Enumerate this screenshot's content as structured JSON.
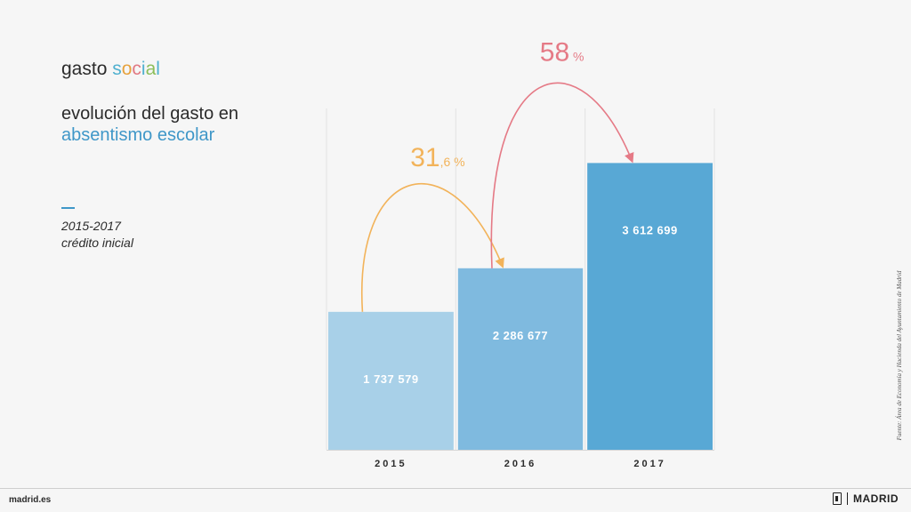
{
  "header": {
    "title_part1": "gasto ",
    "title_part2_letters": [
      "s",
      "o",
      "c",
      "i",
      "a",
      "l"
    ],
    "title_part2_colors": [
      "#4fb0cf",
      "#e7a23d",
      "#e17983",
      "#4fb0cf",
      "#8cbe5a",
      "#4fb0cf"
    ],
    "subtitle_line1": "evolución del gasto en",
    "subtitle_line2": "absentismo escolar",
    "period": "2015-2017",
    "budget_type": "crédito inicial"
  },
  "source": "Fuente: Área de Economía y Hacienda del Ayuntamiento de Madrid",
  "footer": {
    "site": "madrid.es",
    "logo_text": "MADRID"
  },
  "chart_data": {
    "type": "bar",
    "categories": [
      "2015",
      "2016",
      "2017"
    ],
    "values": [
      1737579,
      2286677,
      3612699
    ],
    "value_labels": [
      "1 737 579",
      "2 286 677",
      "3 612 699"
    ],
    "colors": [
      "#a8d0e8",
      "#7fbadf",
      "#58a8d5"
    ],
    "ylim": [
      0,
      4300000
    ],
    "grid": true,
    "annotations": [
      {
        "from": "2015",
        "to": "2016",
        "label_int": "31",
        "label_dec": ",6",
        "label_unit": " %",
        "color": "#f2b35a"
      },
      {
        "from": "2016",
        "to": "2017",
        "label_int": "58",
        "label_dec": "",
        "label_unit": " %",
        "color": "#e57a86"
      }
    ]
  }
}
